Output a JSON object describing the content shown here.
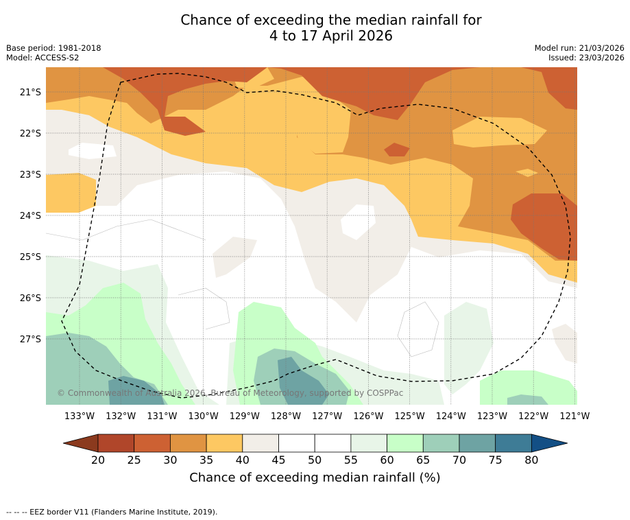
{
  "title": {
    "line1": "Chance of exceeding the median rainfall for",
    "line2": "4 to 17 April 2026"
  },
  "header_left": {
    "base_period": "Base period: 1981-2018",
    "model": "Model: ACCESS-S2"
  },
  "header_right": {
    "model_run": "Model run: 21/03/2026",
    "issued": "Issued: 23/03/2026"
  },
  "map": {
    "lat_labels": [
      "21°S",
      "22°S",
      "23°S",
      "24°S",
      "25°S",
      "26°S",
      "27°S"
    ],
    "lon_labels": [
      "133°W",
      "132°W",
      "131°W",
      "130°W",
      "129°W",
      "128°W",
      "127°W",
      "126°W",
      "125°W",
      "124°W",
      "123°W",
      "122°W",
      "121°W"
    ],
    "copyright": "© Commonwealth of Australia 2026, Bureau of Meteorology, supported by COSPPac"
  },
  "colorbar": {
    "ticks": [
      "20",
      "25",
      "30",
      "35",
      "40",
      "45",
      "50",
      "55",
      "60",
      "65",
      "70",
      "75",
      "80"
    ],
    "label": "Chance of exceeding median rainfall (%)",
    "colors": [
      "#8b3a1e",
      "#b0462a",
      "#cd6133",
      "#e09442",
      "#fdc862",
      "#f2eee8",
      "#ffffff",
      "#ffffff",
      "#e8f5e8",
      "#c8ffc8",
      "#9ecfb9",
      "#6ea3a3",
      "#3e7c96",
      "#134f85"
    ]
  },
  "footnote": "--  --  -- EEZ border V11 (Flanders Marine Institute, 2019)."
}
